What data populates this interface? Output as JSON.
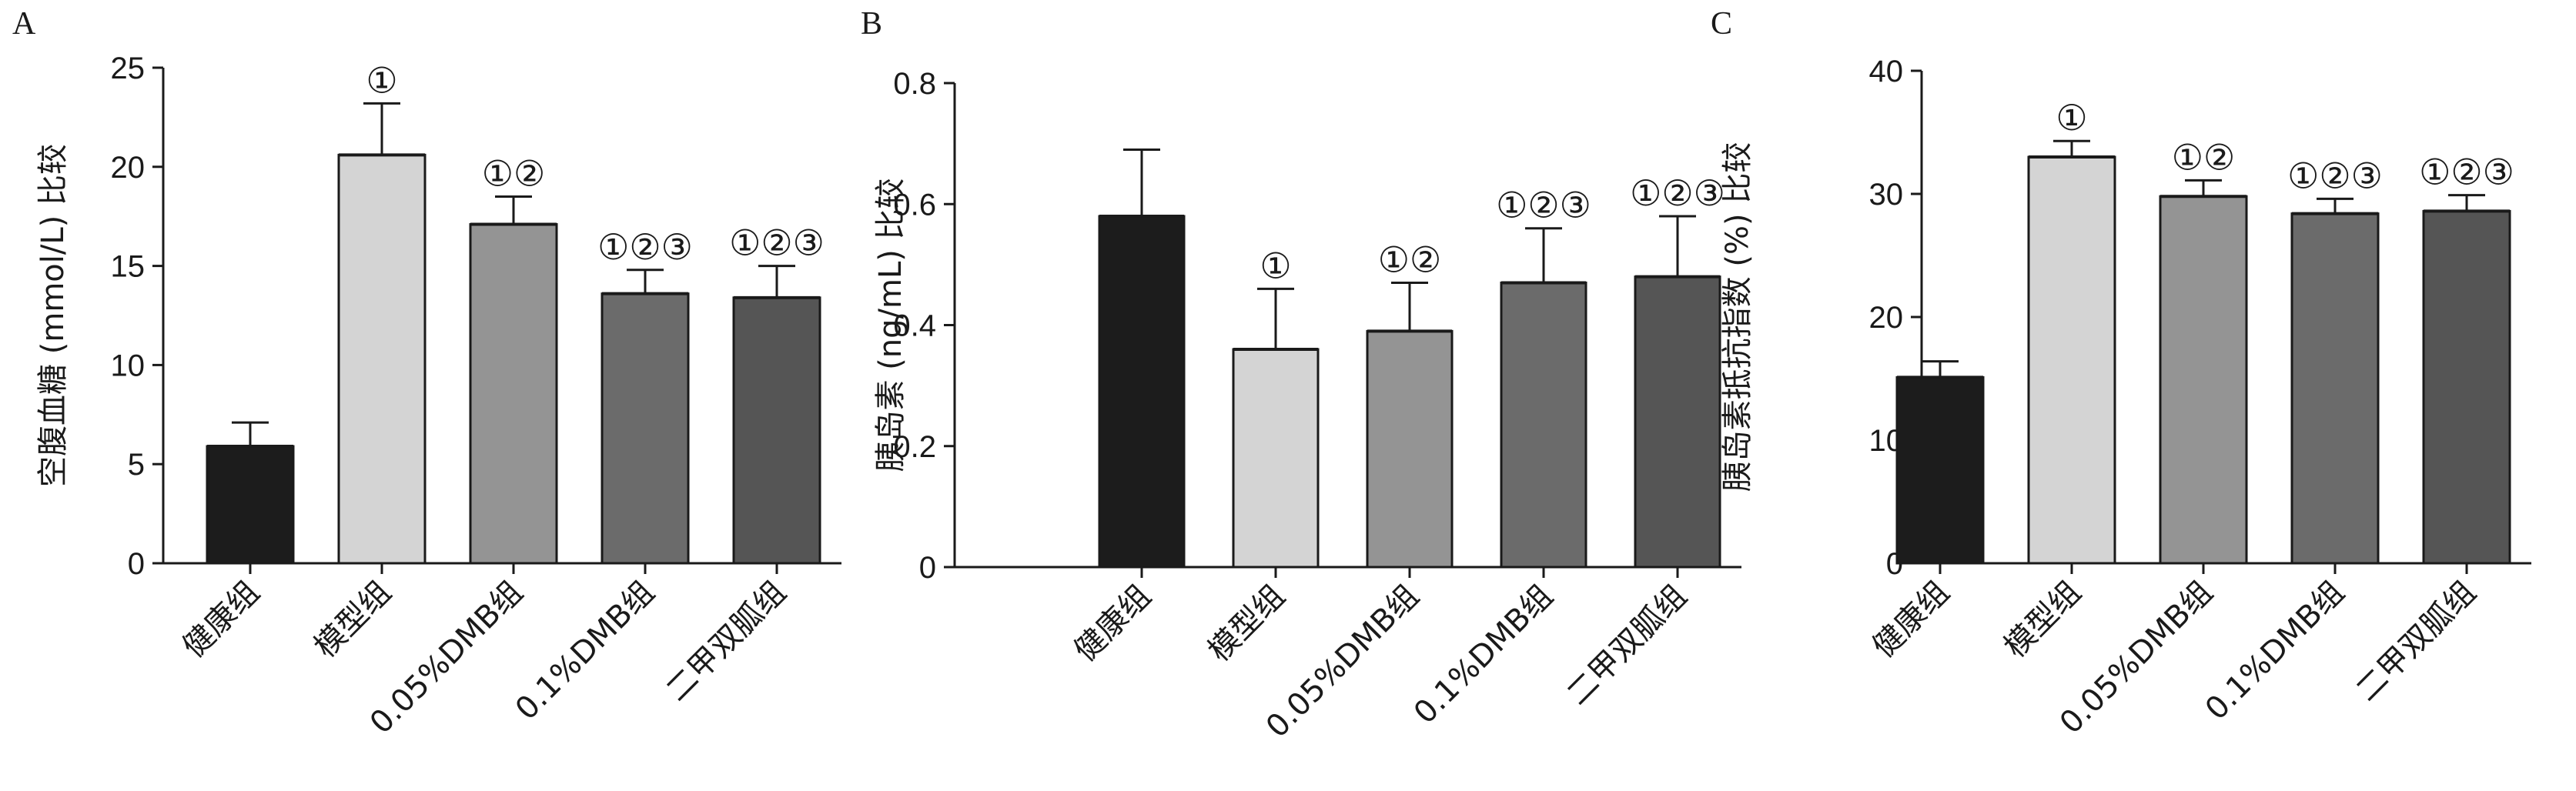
{
  "chart_data": [
    {
      "panel": "A",
      "type": "bar",
      "ylabel": "空腹血糖 (mmol/L) 比较",
      "categories": [
        "健康组",
        "模型组",
        "0.05%DMB组",
        "0.1%DMB组",
        "二甲双胍组"
      ],
      "values": [
        5.9,
        20.6,
        17.1,
        13.6,
        13.4
      ],
      "errors": [
        1.2,
        2.6,
        1.4,
        1.2,
        1.6
      ],
      "significance": [
        "",
        "①",
        "①②",
        "①②③",
        "①②③"
      ],
      "ylim": [
        0,
        25
      ],
      "yticks": [
        "0",
        "5",
        "10",
        "15",
        "20",
        "25"
      ],
      "colors": [
        "#1c1c1c",
        "#d4d4d4",
        "#949494",
        "#6b6b6b",
        "#555555"
      ]
    },
    {
      "panel": "B",
      "type": "bar",
      "ylabel": "胰岛素 (ng/mL) 比较",
      "categories": [
        "健康组",
        "模型组",
        "0.05%DMB组",
        "0.1%DMB组",
        "二甲双胍组"
      ],
      "values": [
        0.58,
        0.36,
        0.39,
        0.47,
        0.48
      ],
      "errors": [
        0.11,
        0.1,
        0.08,
        0.09,
        0.1
      ],
      "significance": [
        "",
        "①",
        "①②",
        "①②③",
        "①②③"
      ],
      "ylim": [
        0,
        0.8
      ],
      "yticks": [
        "0",
        "0.2",
        "0.4",
        "0.6",
        "0.8"
      ],
      "colors": [
        "#1c1c1c",
        "#d4d4d4",
        "#949494",
        "#6b6b6b",
        "#555555"
      ]
    },
    {
      "panel": "C",
      "type": "bar",
      "ylabel": "胰岛素抵抗指数 (%) 比较",
      "categories": [
        "健康组",
        "模型组",
        "0.05%DMB组",
        "0.1%DMB组",
        "二甲双胍组"
      ],
      "values": [
        15.1,
        33.0,
        29.8,
        28.4,
        28.6
      ],
      "errors": [
        1.3,
        1.3,
        1.3,
        1.2,
        1.3
      ],
      "significance": [
        "",
        "①",
        "①②",
        "①②③",
        "①②③"
      ],
      "ylim": [
        0,
        40
      ],
      "yticks": [
        "0",
        "10",
        "20",
        "30",
        "40"
      ],
      "colors": [
        "#1c1c1c",
        "#d4d4d4",
        "#949494",
        "#6b6b6b",
        "#555555"
      ]
    }
  ]
}
